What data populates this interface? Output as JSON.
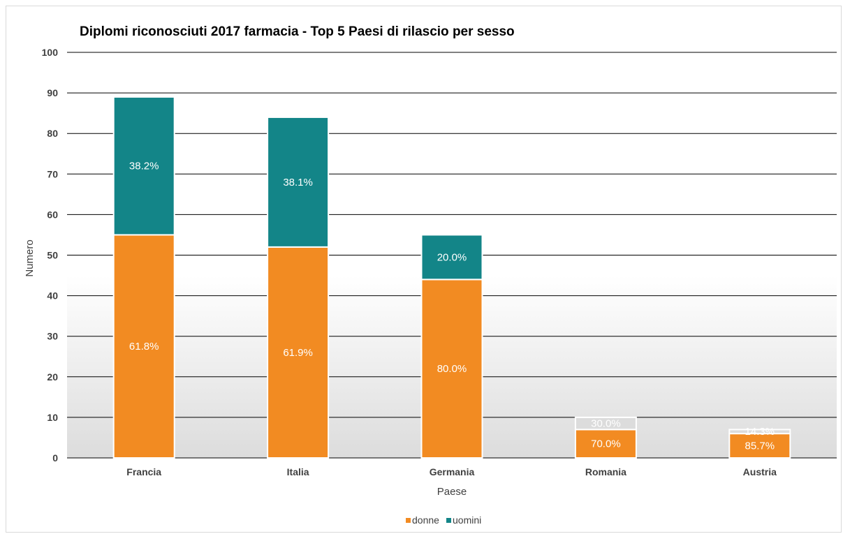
{
  "chart_data": {
    "type": "bar",
    "stacked": true,
    "title": "Diplomi riconosciuti 2017 farmacia - Top 5 Paesi di rilascio per sesso",
    "xlabel": "Paese",
    "ylabel": "Numero",
    "ylim": [
      0,
      100
    ],
    "yticks": [
      "0",
      "10",
      "20",
      "30",
      "40",
      "50",
      "60",
      "70",
      "80",
      "90",
      "100"
    ],
    "grid": true,
    "legend_position": "bottom",
    "categories": [
      "Francia",
      "Italia",
      "Germania",
      "Romania",
      "Austria"
    ],
    "series": [
      {
        "name": "donne",
        "color": "#f28b22",
        "values": [
          55,
          52,
          44,
          7,
          6
        ],
        "labels": [
          "61.8%",
          "61.9%",
          "80.0%",
          "70.0%",
          "85.7%"
        ]
      },
      {
        "name": "uomini",
        "color": "#138588",
        "values": [
          34,
          32,
          11,
          3,
          1
        ],
        "labels": [
          "38.2%",
          "38.1%",
          "20.0%",
          "30.0%",
          "14.3%"
        ]
      }
    ]
  }
}
